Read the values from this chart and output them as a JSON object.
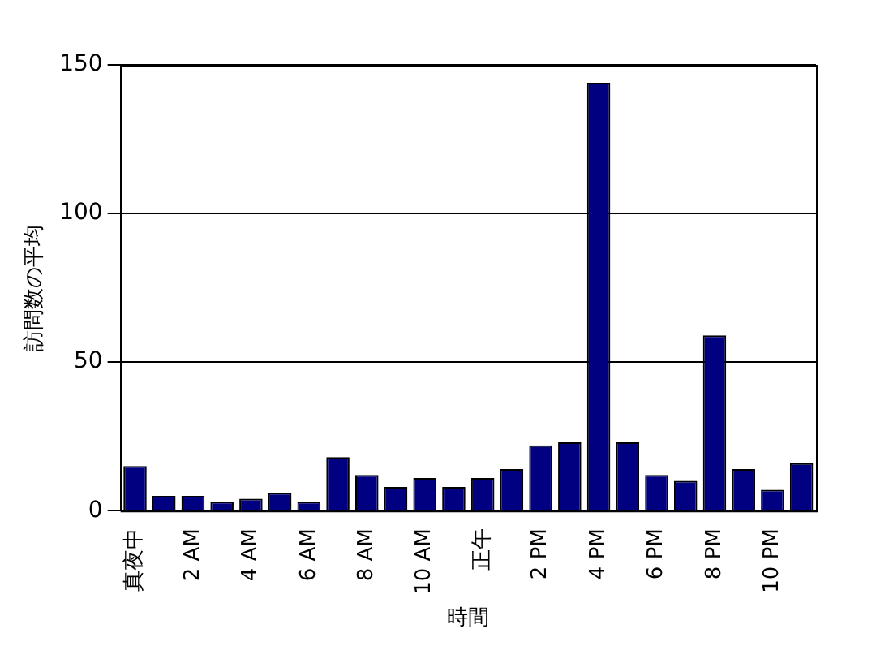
{
  "chart_data": {
    "type": "bar",
    "xlabel": "時間",
    "ylabel": "訪問数の平均",
    "categories": [
      "真夜中",
      null,
      "2 AM",
      null,
      "4 AM",
      null,
      "6 AM",
      null,
      "8 AM",
      null,
      "10 AM",
      null,
      "正午",
      null,
      "2 PM",
      null,
      "4 PM",
      null,
      "6 PM",
      null,
      "8 PM",
      null,
      "10 PM",
      null
    ],
    "values": [
      15,
      5,
      5,
      3,
      4,
      6,
      3,
      18,
      12,
      8,
      11,
      8,
      11,
      14,
      22,
      23,
      144,
      23,
      12,
      10,
      59,
      14,
      7,
      16
    ],
    "color": "#000080",
    "ylim": [
      0,
      150
    ],
    "yticks": [
      0,
      50,
      100,
      150
    ],
    "grid": "y",
    "legend": false
  }
}
